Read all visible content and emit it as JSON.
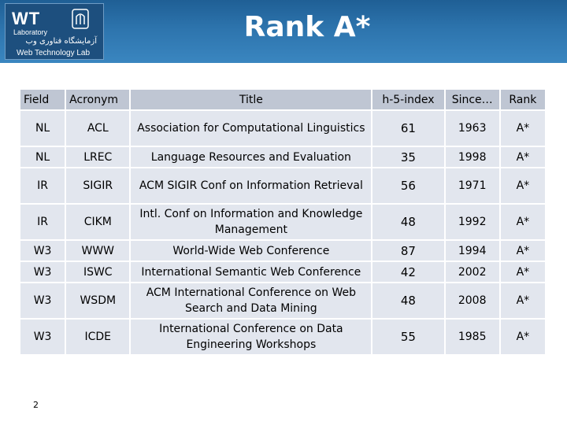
{
  "logo": {
    "wt": "WT",
    "laboratory": "Laboratory",
    "persian": "آزمایشگاه فناوری وب",
    "english": "Web Technology Lab"
  },
  "slide": {
    "title": "Rank A*",
    "page_number": "2"
  },
  "table": {
    "headers": [
      "Field",
      "Acronym",
      "Title",
      "h-5-index",
      "Since…",
      "Rank"
    ],
    "rows": [
      {
        "field": "NL",
        "acronym": "ACL",
        "title": "Association for Computational Linguistics",
        "h5": "61",
        "since": "1963",
        "rank": "A*"
      },
      {
        "field": "NL",
        "acronym": "LREC",
        "title": "Language Resources and Evaluation",
        "h5": "35",
        "since": "1998",
        "rank": "A*"
      },
      {
        "field": "IR",
        "acronym": "SIGIR",
        "title": "ACM SIGIR Conf on Information Retrieval",
        "h5": "56",
        "since": "1971",
        "rank": "A*"
      },
      {
        "field": "IR",
        "acronym": "CIKM",
        "title": "Intl. Conf on Information and Knowledge Management",
        "h5": "48",
        "since": "1992",
        "rank": "A*"
      },
      {
        "field": "W3",
        "acronym": "WWW",
        "title": "World-Wide Web Conference",
        "h5": "87",
        "since": "1994",
        "rank": "A*"
      },
      {
        "field": "W3",
        "acronym": "ISWC",
        "title": "International Semantic Web Conference",
        "h5": "42",
        "since": "2002",
        "rank": "A*"
      },
      {
        "field": "W3",
        "acronym": "WSDM",
        "title": "ACM International Conference on Web Search and Data Mining",
        "h5": "48",
        "since": "2008",
        "rank": "A*"
      },
      {
        "field": "W3",
        "acronym": "ICDE",
        "title": "International Conference on Data Engineering Workshops",
        "h5": "55",
        "since": "1985",
        "rank": "A*"
      }
    ]
  }
}
